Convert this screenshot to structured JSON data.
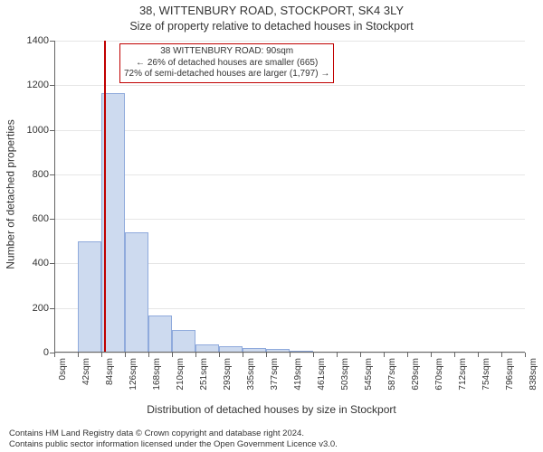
{
  "chart": {
    "type": "histogram",
    "title": "38, WITTENBURY ROAD, STOCKPORT, SK4 3LY",
    "subtitle": "Size of property relative to detached houses in Stockport",
    "xlabel": "Distribution of detached houses by size in Stockport",
    "ylabel": "Number of detached properties",
    "background_color": "#ffffff",
    "grid_color": "#e6e6e6",
    "axis_color": "#646464",
    "bar_fill": "#cddaef",
    "bar_border": "#8faadc",
    "refline_color": "#c00000",
    "title_fontsize": 13,
    "subtitle_fontsize": 12.5,
    "label_fontsize": 12,
    "tick_fontsize": 11,
    "xtick_fontsize": 10,
    "ylim": [
      0,
      1400
    ],
    "ytick_step": 200,
    "yticks": [
      0,
      200,
      400,
      600,
      800,
      1000,
      1200,
      1400
    ],
    "x_categories": [
      "0sqm",
      "42sqm",
      "84sqm",
      "126sqm",
      "168sqm",
      "210sqm",
      "251sqm",
      "293sqm",
      "335sqm",
      "377sqm",
      "419sqm",
      "461sqm",
      "503sqm",
      "545sqm",
      "587sqm",
      "629sqm",
      "670sqm",
      "712sqm",
      "754sqm",
      "796sqm",
      "838sqm"
    ],
    "x_edge_numeric": [
      0,
      42,
      84,
      126,
      168,
      210,
      251,
      293,
      335,
      377,
      419,
      461,
      503,
      545,
      587,
      629,
      670,
      712,
      754,
      796,
      838
    ],
    "bar_values": [
      0,
      500,
      1165,
      540,
      165,
      100,
      35,
      30,
      20,
      15,
      10,
      0,
      0,
      0,
      0,
      0,
      0,
      0,
      0,
      0
    ],
    "reference_value": 90,
    "annotation": {
      "line1": "38 WITTENBURY ROAD: 90sqm",
      "line2": "← 26% of detached houses are smaller (665)",
      "line3": "72% of semi-detached houses are larger (1,797) →",
      "border_color": "#c00000",
      "bg_color": "#ffffff",
      "fontsize": 10
    },
    "footer_line1": "Contains HM Land Registry data © Crown copyright and database right 2024.",
    "footer_line2": "Contains public sector information licensed under the Open Government Licence v3.0."
  }
}
